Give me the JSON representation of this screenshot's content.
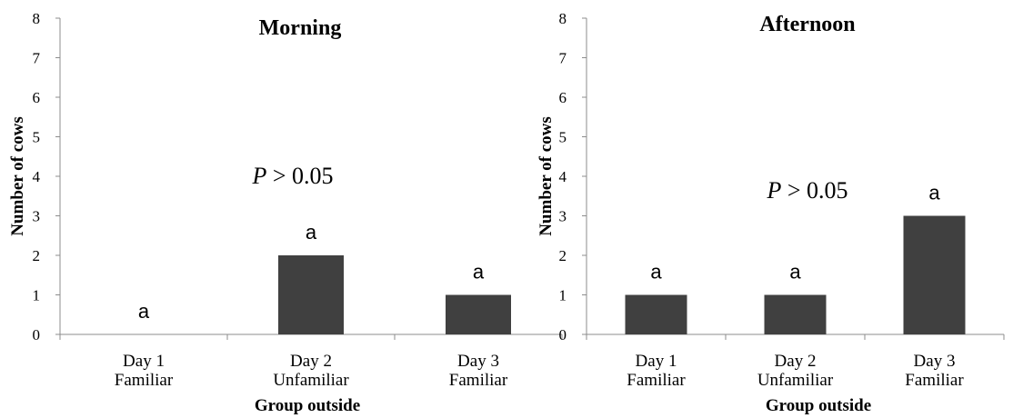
{
  "colors": {
    "bar": "#404040",
    "axis": "#8c8c8c",
    "text": "#000000"
  },
  "chart_data": [
    {
      "type": "bar",
      "title": "Morning",
      "xlabel": "Group outside",
      "ylabel": "Number of cows",
      "ylim": [
        0,
        8
      ],
      "yticks": [
        "0",
        "1",
        "2",
        "3",
        "4",
        "5",
        "6",
        "7",
        "8"
      ],
      "categories": [
        [
          "Day 1",
          "Familiar"
        ],
        [
          "Day 2",
          "Unfamiliar"
        ],
        [
          "Day 3",
          "Familiar"
        ]
      ],
      "values": [
        0,
        2,
        1
      ],
      "bar_labels": [
        "a",
        "a",
        "a"
      ],
      "annotation": {
        "italic": "P",
        "text": " > 0.05"
      },
      "grid": false
    },
    {
      "type": "bar",
      "title": "Afternoon",
      "xlabel": "Group outside",
      "ylabel": "Number of cows",
      "ylim": [
        0,
        8
      ],
      "yticks": [
        "0",
        "1",
        "2",
        "3",
        "4",
        "5",
        "6",
        "7",
        "8"
      ],
      "categories": [
        [
          "Day 1",
          "Familiar"
        ],
        [
          "Day 2",
          "Unfamiliar"
        ],
        [
          "Day 3",
          "Familiar"
        ]
      ],
      "values": [
        1,
        1,
        3
      ],
      "bar_labels": [
        "a",
        "a",
        "a"
      ],
      "annotation": {
        "italic": "P",
        "text": " > 0.05"
      },
      "grid": false
    }
  ]
}
